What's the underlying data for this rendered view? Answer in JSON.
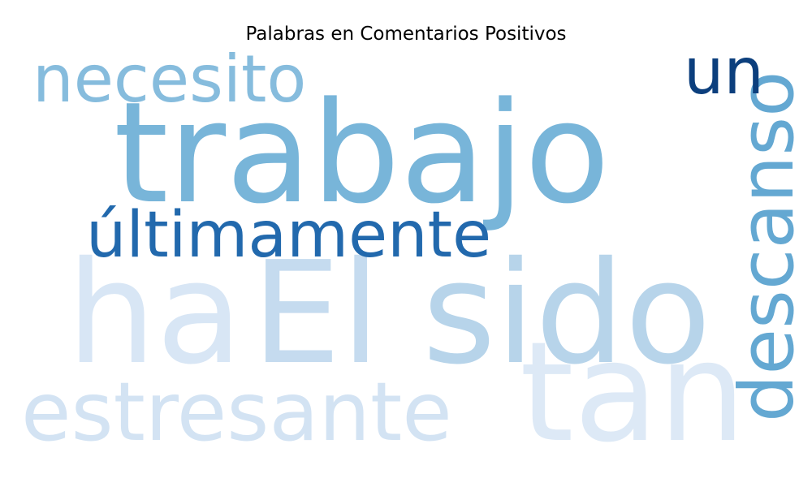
{
  "chart_data": {
    "type": "wordcloud",
    "title": "Palabras en Comentarios Positivos",
    "colormap": "Blues",
    "words": [
      {
        "text": "trabajo",
        "weight": 1.0,
        "color": "#78b5d9",
        "orientation": "horizontal"
      },
      {
        "text": "El",
        "weight": 0.95,
        "color": "#c5dbef",
        "orientation": "horizontal"
      },
      {
        "text": "sido",
        "weight": 0.95,
        "color": "#b7d4ea",
        "orientation": "horizontal"
      },
      {
        "text": "ha",
        "weight": 0.95,
        "color": "#d8e6f5",
        "orientation": "horizontal"
      },
      {
        "text": "tan",
        "weight": 0.93,
        "color": "#dde9f6",
        "orientation": "horizontal"
      },
      {
        "text": "estresante",
        "weight": 0.6,
        "color": "#d3e3f3",
        "orientation": "horizontal"
      },
      {
        "text": "descanso",
        "weight": 0.55,
        "color": "#64a8d2",
        "orientation": "vertical"
      },
      {
        "text": "necesito",
        "weight": 0.5,
        "color": "#86bcdd",
        "orientation": "horizontal"
      },
      {
        "text": "últimamente",
        "weight": 0.45,
        "color": "#2269ad",
        "orientation": "horizontal"
      },
      {
        "text": "un",
        "weight": 0.45,
        "color": "#0c3f7d",
        "orientation": "horizontal"
      }
    ]
  }
}
